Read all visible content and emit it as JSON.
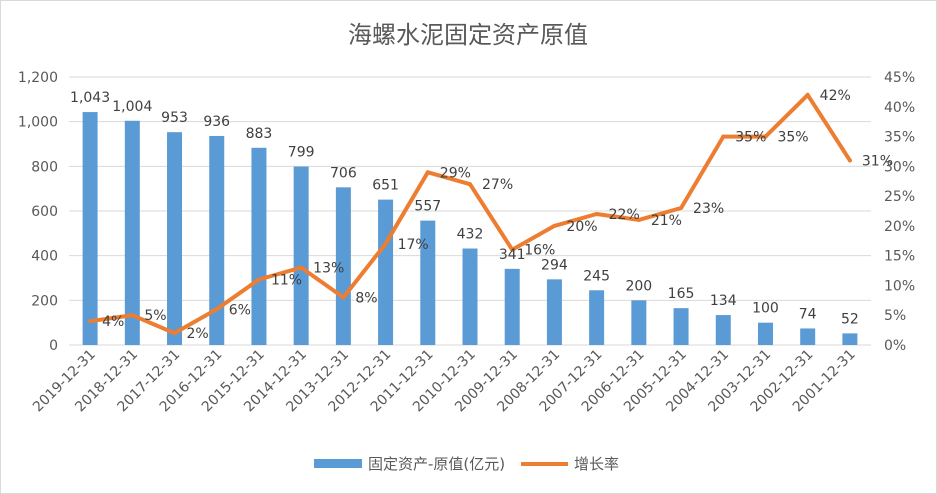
{
  "chart_data": {
    "type": "bar+line",
    "title": "海螺水泥固定资产原值",
    "categories": [
      "2019-12-31",
      "2018-12-31",
      "2017-12-31",
      "2016-12-31",
      "2015-12-31",
      "2014-12-31",
      "2013-12-31",
      "2012-12-31",
      "2011-12-31",
      "2010-12-31",
      "2009-12-31",
      "2008-12-31",
      "2007-12-31",
      "2006-12-31",
      "2005-12-31",
      "2004-12-31",
      "2003-12-31",
      "2002-12-31",
      "2001-12-31"
    ],
    "series": [
      {
        "name": "固定资产-原值(亿元)",
        "type": "bar",
        "axis": "left",
        "color": "#5b9bd5",
        "values": [
          1043,
          1004,
          953,
          936,
          883,
          799,
          706,
          651,
          557,
          432,
          341,
          294,
          245,
          200,
          165,
          134,
          100,
          74,
          52
        ],
        "labels": [
          "1,043",
          "1,004",
          "953",
          "936",
          "883",
          "799",
          "706",
          "651",
          "557",
          "432",
          "341",
          "294",
          "245",
          "200",
          "165",
          "134",
          "100",
          "74",
          "52"
        ]
      },
      {
        "name": "增长率",
        "type": "line",
        "axis": "right",
        "color": "#ed7d31",
        "values": [
          4,
          5,
          2,
          6,
          11,
          13,
          8,
          17,
          29,
          27,
          16,
          20,
          22,
          21,
          23,
          35,
          35,
          42,
          31
        ],
        "labels": [
          "4%",
          "5%",
          "2%",
          "6%",
          "11%",
          "13%",
          "8%",
          "17%",
          "29%",
          "27%",
          "16%",
          "20%",
          "22%",
          "21%",
          "23%",
          "35%",
          "35%",
          "42%",
          "31%"
        ]
      }
    ],
    "y_left": {
      "min": 0,
      "max": 1200,
      "step": 200,
      "tick_labels": [
        "0",
        "200",
        "400",
        "600",
        "800",
        "1,000",
        "1,200"
      ]
    },
    "y_right": {
      "min": 0,
      "max": 45,
      "step": 5,
      "tick_labels": [
        "0%",
        "5%",
        "10%",
        "15%",
        "20%",
        "25%",
        "30%",
        "35%",
        "40%",
        "45%"
      ]
    },
    "grid": true,
    "legend_position": "bottom"
  }
}
